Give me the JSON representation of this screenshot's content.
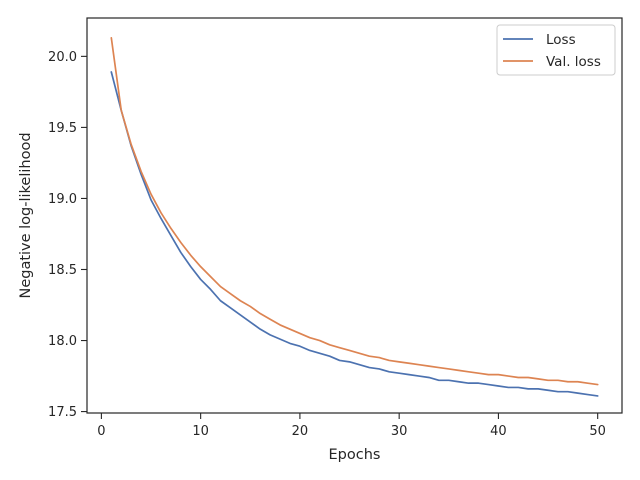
{
  "chart_data": {
    "type": "line",
    "title": "",
    "xlabel": "Epochs",
    "ylabel": "Negative log-likelihood",
    "xlim": [
      -1.45,
      52.45
    ],
    "ylim": [
      17.49,
      20.27
    ],
    "xticks": [
      0,
      10,
      20,
      30,
      40,
      50
    ],
    "yticks": [
      17.5,
      18.0,
      18.5,
      19.0,
      19.5,
      20.0
    ],
    "xtick_labels": [
      "0",
      "10",
      "20",
      "30",
      "40",
      "50"
    ],
    "ytick_labels": [
      "17.5",
      "18.0",
      "18.5",
      "19.0",
      "19.5",
      "20.0"
    ],
    "grid": false,
    "legend": {
      "placement": "top-right"
    },
    "x": [
      1,
      2,
      3,
      4,
      5,
      6,
      7,
      8,
      9,
      10,
      11,
      12,
      13,
      14,
      15,
      16,
      17,
      18,
      19,
      20,
      21,
      22,
      23,
      24,
      25,
      26,
      27,
      28,
      29,
      30,
      31,
      32,
      33,
      34,
      35,
      36,
      37,
      38,
      39,
      40,
      41,
      42,
      43,
      44,
      45,
      46,
      47,
      48,
      49,
      50
    ],
    "series": [
      {
        "name": "Loss",
        "color": "#4c72b0",
        "values": [
          19.89,
          19.62,
          19.37,
          19.17,
          18.99,
          18.86,
          18.74,
          18.62,
          18.52,
          18.43,
          18.36,
          18.28,
          18.23,
          18.18,
          18.13,
          18.08,
          18.04,
          18.01,
          17.98,
          17.96,
          17.93,
          17.91,
          17.89,
          17.86,
          17.85,
          17.83,
          17.81,
          17.8,
          17.78,
          17.77,
          17.76,
          17.75,
          17.74,
          17.72,
          17.72,
          17.71,
          17.7,
          17.7,
          17.69,
          17.68,
          17.67,
          17.67,
          17.66,
          17.66,
          17.65,
          17.64,
          17.64,
          17.63,
          17.62,
          17.61
        ]
      },
      {
        "name": "Val. loss",
        "color": "#dd8452",
        "values": [
          20.13,
          19.62,
          19.38,
          19.19,
          19.03,
          18.9,
          18.79,
          18.69,
          18.6,
          18.52,
          18.45,
          18.38,
          18.33,
          18.28,
          18.24,
          18.19,
          18.15,
          18.11,
          18.08,
          18.05,
          18.02,
          18.0,
          17.97,
          17.95,
          17.93,
          17.91,
          17.89,
          17.88,
          17.86,
          17.85,
          17.84,
          17.83,
          17.82,
          17.81,
          17.8,
          17.79,
          17.78,
          17.77,
          17.76,
          17.76,
          17.75,
          17.74,
          17.74,
          17.73,
          17.72,
          17.72,
          17.71,
          17.71,
          17.7,
          17.69
        ]
      }
    ]
  }
}
